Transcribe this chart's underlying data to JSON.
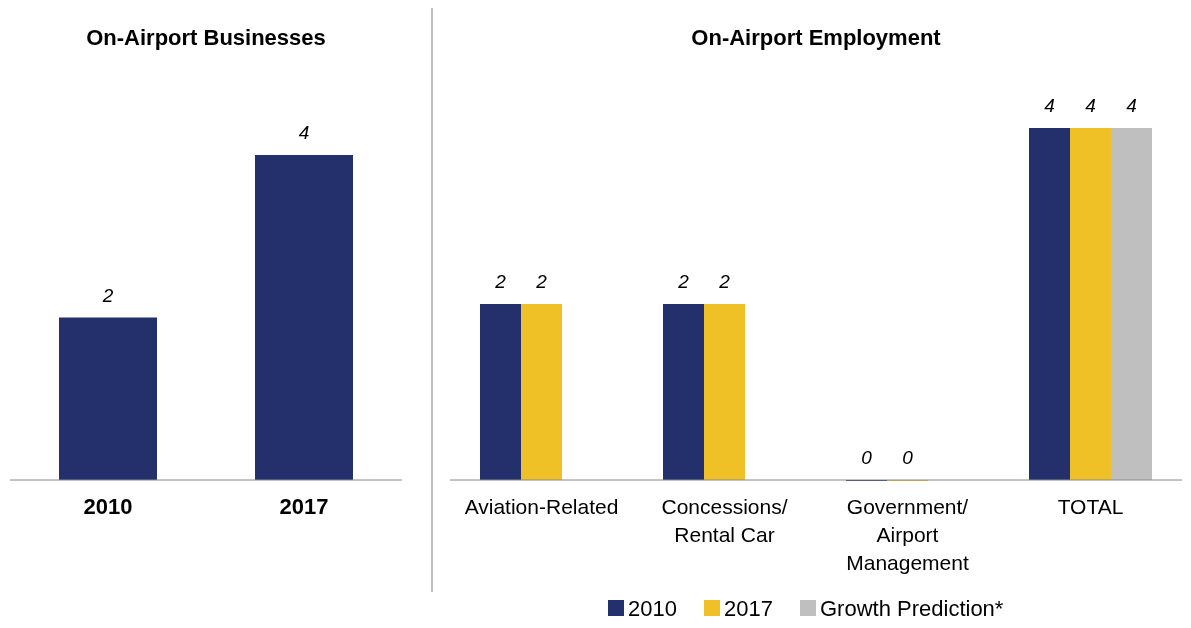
{
  "chart_data": [
    {
      "type": "bar",
      "title": "On-Airport Businesses",
      "categories": [
        "2010",
        "2017"
      ],
      "values": [
        2,
        4
      ],
      "color": "#24306b",
      "data_labels": true
    },
    {
      "type": "bar",
      "title": "On-Airport Employment",
      "categories": [
        "Aviation-Related",
        "Concessions/\nRental Car",
        "Government/\nAirport\nManagement",
        "TOTAL"
      ],
      "series": [
        {
          "name": "2010",
          "color": "#24306b",
          "values": [
            2,
            2,
            0,
            4
          ]
        },
        {
          "name": "2017",
          "color": "#f0c127",
          "values": [
            2,
            2,
            0,
            4
          ]
        },
        {
          "name": "Growth Prediction*",
          "color": "#bfbfbf",
          "values": [
            null,
            null,
            null,
            4
          ]
        }
      ],
      "data_labels": true,
      "legend": "bottom"
    }
  ]
}
